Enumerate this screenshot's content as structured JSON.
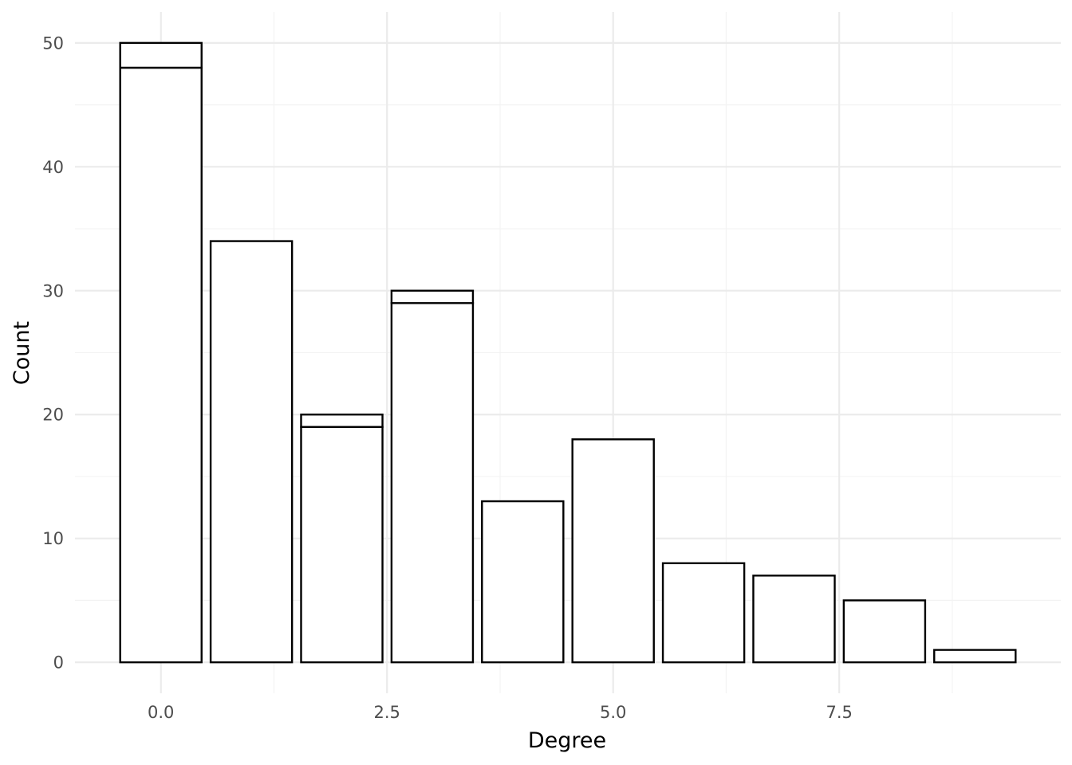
{
  "chart_data": {
    "type": "bar",
    "stacked": true,
    "title": "",
    "xlabel": "Degree",
    "ylabel": "Count",
    "x": [
      0,
      1,
      2,
      3,
      4,
      5,
      6,
      7,
      8,
      9
    ],
    "series": [
      {
        "values": [
          48,
          34,
          19,
          29,
          13,
          18,
          8,
          7,
          5,
          1
        ]
      },
      {
        "values": [
          2,
          0,
          1,
          1,
          0,
          0,
          0,
          0,
          0,
          0
        ]
      }
    ],
    "xlim": [
      -0.95,
      9.95
    ],
    "ylim": [
      -2.5,
      52.5
    ],
    "x_ticks": [
      0,
      2.5,
      5,
      7.5
    ],
    "x_tick_labels": [
      "0.0",
      "2.5",
      "5.0",
      "7.5"
    ],
    "y_ticks": [
      0,
      10,
      20,
      30,
      40,
      50
    ],
    "y_tick_labels": [
      "0",
      "10",
      "20",
      "30",
      "40",
      "50"
    ],
    "grid": true,
    "bar_fill": "#ffffff",
    "bar_outline": "#000000",
    "legend": "none"
  }
}
